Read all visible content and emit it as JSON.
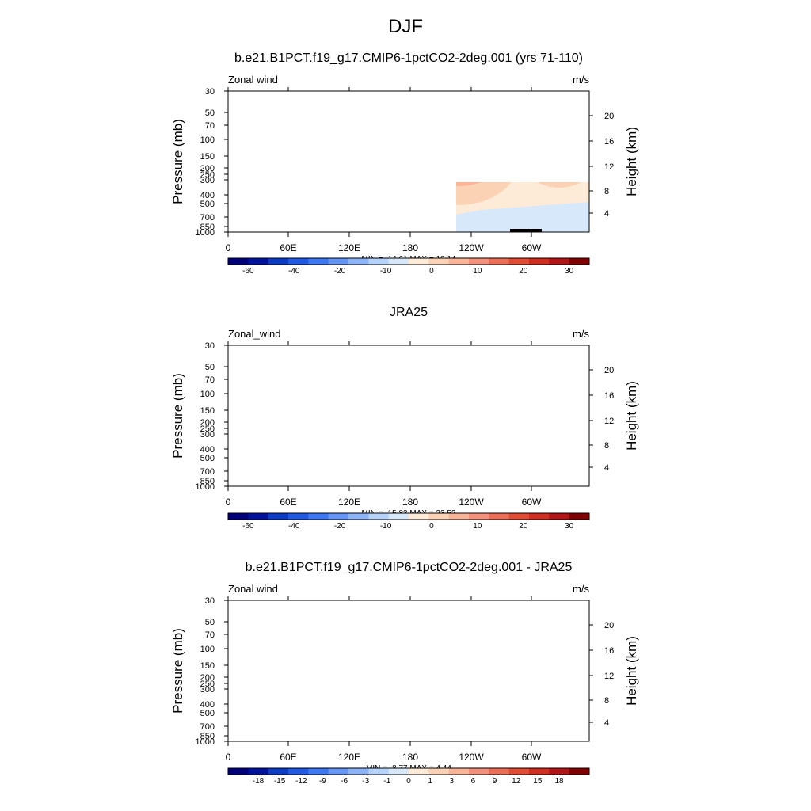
{
  "figure": {
    "title": "DJF"
  },
  "chart_data": [
    {
      "type": "heatmap",
      "title": "b.e21.B1PCT.f19_g17.CMIP6-1pctCO2-2deg.001 (yrs 71-110)",
      "left_label": "Zonal wind",
      "right_label": "m/s",
      "ylabel": "Pressure (mb)",
      "y2label": "Height (km)",
      "x_ticks": [
        "0",
        "60E",
        "120E",
        "180",
        "120W",
        "60W"
      ],
      "y_ticks": [
        "30",
        "50",
        "70",
        "100",
        "150",
        "200",
        "250",
        "300",
        "400",
        "500",
        "700",
        "850",
        "1000"
      ],
      "y2_ticks": [
        "20",
        "16",
        "12",
        "8",
        "4"
      ],
      "stats": "MIN = -14.61  MAX =  18.14",
      "colorbar_labels": [
        "-60",
        "-40",
        "-20",
        "-10",
        "0",
        "10",
        "20",
        "30"
      ],
      "show_topography": true,
      "field": "model"
    },
    {
      "type": "heatmap",
      "title": "JRA25",
      "left_label": "Zonal_wind",
      "right_label": "m/s",
      "ylabel": "Pressure (mb)",
      "y2label": "Height (km)",
      "x_ticks": [
        "0",
        "60E",
        "120E",
        "180",
        "120W",
        "60W"
      ],
      "y_ticks": [
        "30",
        "50",
        "70",
        "100",
        "150",
        "200",
        "250",
        "300",
        "400",
        "500",
        "700",
        "850",
        "1000"
      ],
      "y2_ticks": [
        "20",
        "16",
        "12",
        "8",
        "4"
      ],
      "stats": "MIN = -15.83  MAX =  23.52",
      "colorbar_labels": [
        "-60",
        "-40",
        "-20",
        "-10",
        "0",
        "10",
        "20",
        "30"
      ],
      "show_topography": false,
      "field": "obs"
    },
    {
      "type": "heatmap",
      "title": "b.e21.B1PCT.f19_g17.CMIP6-1pctCO2-2deg.001 - JRA25",
      "left_label": "Zonal wind",
      "right_label": "m/s",
      "ylabel": "Pressure (mb)",
      "y2label": "Height (km)",
      "x_ticks": [
        "0",
        "60E",
        "120E",
        "180",
        "120W",
        "60W"
      ],
      "y_ticks": [
        "30",
        "50",
        "70",
        "100",
        "150",
        "200",
        "250",
        "300",
        "400",
        "500",
        "700",
        "850",
        "1000"
      ],
      "y2_ticks": [
        "20",
        "16",
        "12",
        "8",
        "4"
      ],
      "stats": "MIN =  -8.77  MAX =   4.44",
      "colorbar_labels": [
        "-18",
        "-15",
        "-12",
        "-9",
        "-6",
        "-3",
        "-1",
        "0",
        "1",
        "3",
        "6",
        "9",
        "12",
        "15",
        "18"
      ],
      "show_topography": true,
      "field": "diff"
    }
  ],
  "colors": {
    "scale": [
      "#00007f",
      "#00139f",
      "#0a3cc8",
      "#1e5ae6",
      "#3c78f5",
      "#6496fa",
      "#8cb4fa",
      "#b4d2fa",
      "#d7e8fb",
      "#fdebd7",
      "#fcd2b4",
      "#fab496",
      "#f5917a",
      "#ee6e55",
      "#e34b32",
      "#d22d1e",
      "#b41414",
      "#820000"
    ],
    "background_field": "#fdebd7",
    "topography": "#000000"
  }
}
